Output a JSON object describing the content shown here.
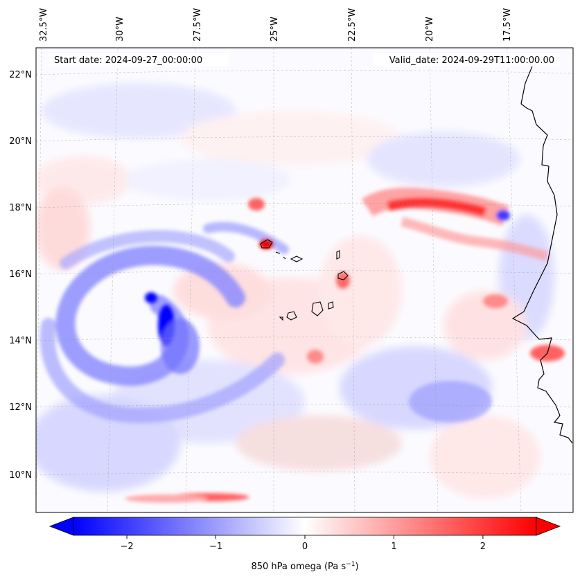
{
  "header": {
    "start_date": "Start date: 2024-09-27_00:00:00",
    "valid_date": "Valid_date: 2024-09-29T11:00:00.00"
  },
  "map": {
    "lon_labels": [
      "32.5°W",
      "30°W",
      "27.5°W",
      "25°W",
      "22.5°W",
      "20°W",
      "17.5°W"
    ],
    "lat_labels": [
      "22°N",
      "20°N",
      "18°N",
      "16°N",
      "14°N",
      "12°N",
      "10°N"
    ]
  },
  "colorbar": {
    "label": "850 hPa omega (Pa s",
    "label_exp": "−1",
    "label_close": ")",
    "ticks": [
      "−2",
      "−1",
      "0",
      "1",
      "2"
    ],
    "tick_values": [
      -2,
      -1,
      0,
      1,
      2
    ],
    "range": [
      -2.6,
      2.6
    ],
    "colors": {
      "negative": "#0000ff",
      "zero": "#ffffff",
      "positive": "#ff0000"
    }
  }
}
